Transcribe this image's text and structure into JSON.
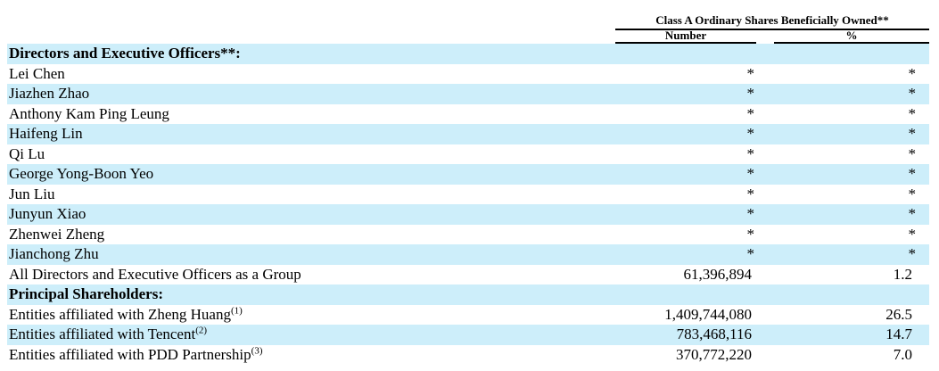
{
  "header": {
    "title": "Class A Ordinary Shares Beneficially Owned**",
    "number": "Number",
    "percent": "%"
  },
  "sections": [
    {
      "title": "Directors and Executive Officers**:",
      "rows": [
        {
          "label": "Lei Chen",
          "number": "*",
          "percent": "*"
        },
        {
          "label": "Jiazhen Zhao",
          "number": "*",
          "percent": "*"
        },
        {
          "label": "Anthony Kam Ping Leung",
          "number": "*",
          "percent": "*"
        },
        {
          "label": "Haifeng Lin",
          "number": "*",
          "percent": "*"
        },
        {
          "label": "Qi Lu",
          "number": "*",
          "percent": "*"
        },
        {
          "label": "George Yong-Boon Yeo",
          "number": "*",
          "percent": "*"
        },
        {
          "label": "Jun Liu",
          "number": "*",
          "percent": "*"
        },
        {
          "label": "Junyun Xiao",
          "number": "*",
          "percent": "*"
        },
        {
          "label": "Zhenwei Zheng",
          "number": "*",
          "percent": "*"
        },
        {
          "label": "Jianchong Zhu",
          "number": "*",
          "percent": "*"
        },
        {
          "label": "All Directors and Executive Officers as a Group",
          "number": "61,396,894",
          "percent": "1.2"
        }
      ]
    },
    {
      "title": "Principal Shareholders:",
      "rows": [
        {
          "label": "Entities affiliated with Zheng Huang",
          "note": "(1)",
          "number": "1,409,744,080",
          "percent": "26.5"
        },
        {
          "label": "Entities affiliated with Tencent",
          "note": "(2)",
          "number": "783,468,116",
          "percent": "14.7"
        },
        {
          "label": "Entities affiliated with PDD Partnership",
          "note": "(3)",
          "number": "370,772,220",
          "percent": "7.0"
        }
      ]
    }
  ]
}
